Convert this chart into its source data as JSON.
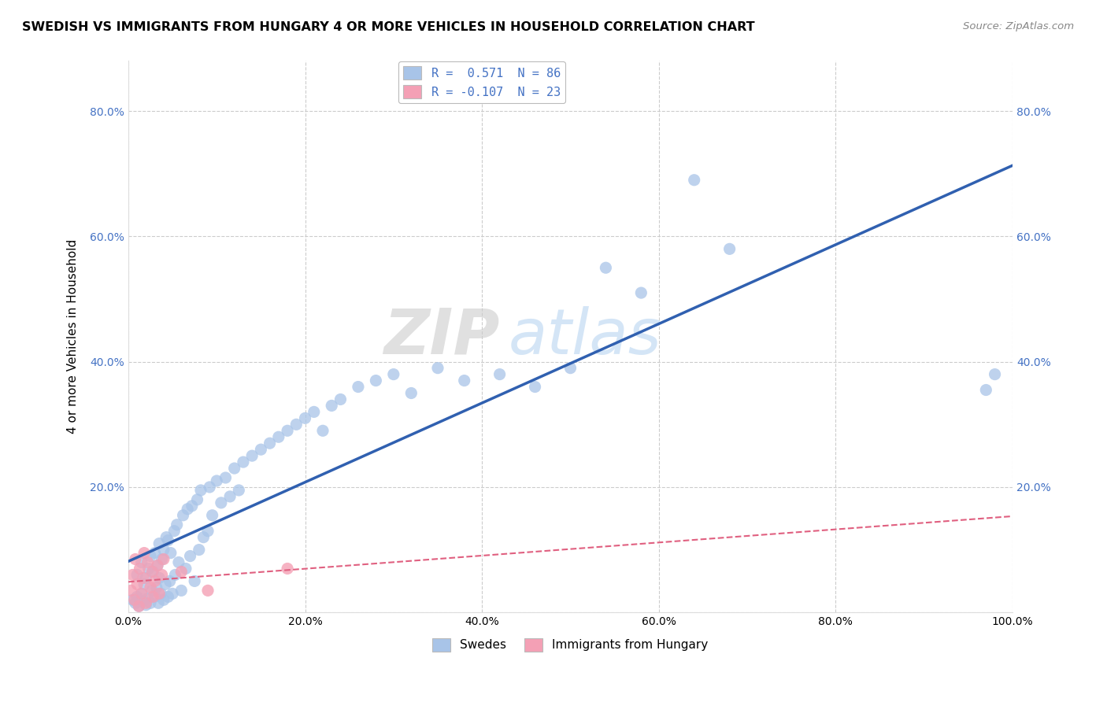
{
  "title": "SWEDISH VS IMMIGRANTS FROM HUNGARY 4 OR MORE VEHICLES IN HOUSEHOLD CORRELATION CHART",
  "source": "Source: ZipAtlas.com",
  "ylabel": "4 or more Vehicles in Household",
  "xlim": [
    0.0,
    1.0
  ],
  "ylim": [
    0.0,
    0.88
  ],
  "legend_label1": "R =  0.571  N = 86",
  "legend_label2": "R = -0.107  N = 23",
  "legend_x_label1": "Swedes",
  "legend_x_label2": "Immigrants from Hungary",
  "color_blue": "#A8C4E8",
  "color_pink": "#F4A0B5",
  "color_blue_line": "#3060B0",
  "color_pink_line": "#E06080",
  "color_text_blue": "#4472C4",
  "background_color": "#FFFFFF",
  "grid_color": "#CCCCCC",
  "watermark_zip": "ZIP",
  "watermark_atlas": "atlas",
  "swedes_x": [
    0.005,
    0.008,
    0.01,
    0.01,
    0.012,
    0.015,
    0.015,
    0.017,
    0.018,
    0.02,
    0.02,
    0.022,
    0.023,
    0.025,
    0.025,
    0.027,
    0.028,
    0.03,
    0.03,
    0.032,
    0.033,
    0.034,
    0.035,
    0.035,
    0.037,
    0.038,
    0.04,
    0.04,
    0.042,
    0.043,
    0.045,
    0.045,
    0.047,
    0.048,
    0.05,
    0.052,
    0.053,
    0.055,
    0.057,
    0.06,
    0.062,
    0.065,
    0.067,
    0.07,
    0.072,
    0.075,
    0.078,
    0.08,
    0.082,
    0.085,
    0.09,
    0.092,
    0.095,
    0.1,
    0.105,
    0.11,
    0.115,
    0.12,
    0.125,
    0.13,
    0.14,
    0.15,
    0.16,
    0.17,
    0.18,
    0.19,
    0.2,
    0.21,
    0.22,
    0.23,
    0.24,
    0.26,
    0.28,
    0.3,
    0.32,
    0.35,
    0.38,
    0.42,
    0.46,
    0.5,
    0.54,
    0.58,
    0.64,
    0.68,
    0.97,
    0.98
  ],
  "swedes_y": [
    0.02,
    0.015,
    0.025,
    0.06,
    0.01,
    0.03,
    0.08,
    0.018,
    0.045,
    0.012,
    0.055,
    0.022,
    0.07,
    0.015,
    0.09,
    0.035,
    0.065,
    0.025,
    0.095,
    0.04,
    0.075,
    0.015,
    0.055,
    0.11,
    0.03,
    0.085,
    0.02,
    0.1,
    0.045,
    0.12,
    0.025,
    0.115,
    0.05,
    0.095,
    0.03,
    0.13,
    0.06,
    0.14,
    0.08,
    0.035,
    0.155,
    0.07,
    0.165,
    0.09,
    0.17,
    0.05,
    0.18,
    0.1,
    0.195,
    0.12,
    0.13,
    0.2,
    0.155,
    0.21,
    0.175,
    0.215,
    0.185,
    0.23,
    0.195,
    0.24,
    0.25,
    0.26,
    0.27,
    0.28,
    0.29,
    0.3,
    0.31,
    0.32,
    0.29,
    0.33,
    0.34,
    0.36,
    0.37,
    0.38,
    0.35,
    0.39,
    0.37,
    0.38,
    0.36,
    0.39,
    0.55,
    0.51,
    0.69,
    0.58,
    0.355,
    0.38
  ],
  "hungary_x": [
    0.003,
    0.005,
    0.007,
    0.008,
    0.01,
    0.012,
    0.013,
    0.015,
    0.017,
    0.018,
    0.02,
    0.022,
    0.025,
    0.027,
    0.028,
    0.03,
    0.033,
    0.035,
    0.038,
    0.04,
    0.06,
    0.09,
    0.18
  ],
  "hungary_y": [
    0.035,
    0.06,
    0.02,
    0.085,
    0.045,
    0.01,
    0.07,
    0.03,
    0.055,
    0.095,
    0.015,
    0.08,
    0.04,
    0.065,
    0.025,
    0.05,
    0.075,
    0.03,
    0.06,
    0.085,
    0.065,
    0.035,
    0.07
  ]
}
